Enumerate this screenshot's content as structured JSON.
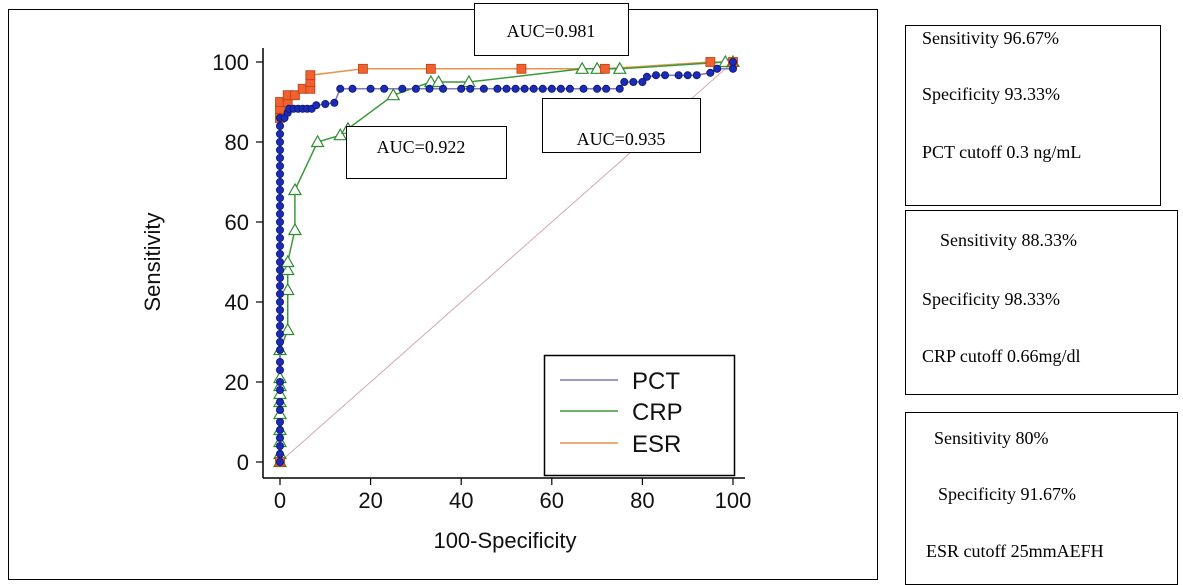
{
  "chart_data": {
    "type": "line",
    "xlabel": "100-Specificity",
    "ylabel": "Sensitivity",
    "xlim": [
      0,
      100
    ],
    "ylim": [
      0,
      100
    ],
    "xticks": [
      "0",
      "20",
      "40",
      "60",
      "80",
      "100"
    ],
    "yticks": [
      "0",
      "20",
      "40",
      "60",
      "80",
      "100"
    ],
    "diagonal": true,
    "legend_position": "bottom-right",
    "series": [
      {
        "name": "PCT",
        "line_color": "#7b77b8",
        "marker": "circle",
        "marker_color": "#1b2bb5",
        "marker_stroke": "#0a1470",
        "points": [
          [
            0,
            0
          ],
          [
            0,
            2
          ],
          [
            0,
            4
          ],
          [
            0,
            6
          ],
          [
            0,
            8
          ],
          [
            0,
            10
          ],
          [
            0,
            13
          ],
          [
            0,
            15
          ],
          [
            0,
            18
          ],
          [
            0,
            20
          ],
          [
            0,
            23
          ],
          [
            0,
            25
          ],
          [
            0,
            28
          ],
          [
            0,
            30
          ],
          [
            0,
            32
          ],
          [
            0,
            34
          ],
          [
            0,
            36
          ],
          [
            0,
            38
          ],
          [
            0,
            40
          ],
          [
            0,
            42
          ],
          [
            0,
            44
          ],
          [
            0,
            46
          ],
          [
            0,
            48
          ],
          [
            0,
            50
          ],
          [
            0,
            52
          ],
          [
            0,
            54
          ],
          [
            0,
            56
          ],
          [
            0,
            58
          ],
          [
            0,
            60
          ],
          [
            0,
            62
          ],
          [
            0,
            64
          ],
          [
            0,
            66
          ],
          [
            0,
            68
          ],
          [
            0,
            70
          ],
          [
            0,
            72
          ],
          [
            0,
            74
          ],
          [
            0,
            76
          ],
          [
            0,
            78
          ],
          [
            0,
            80
          ],
          [
            0,
            82
          ],
          [
            0,
            84
          ],
          [
            0,
            86
          ],
          [
            1,
            86
          ],
          [
            1.7,
            87.3
          ],
          [
            2,
            88.3
          ],
          [
            3,
            88.3
          ],
          [
            4,
            88.3
          ],
          [
            5,
            88.3
          ],
          [
            6,
            88.3
          ],
          [
            7,
            88.3
          ],
          [
            8,
            89.2
          ],
          [
            10,
            89.5
          ],
          [
            12,
            89.8
          ],
          [
            13.3,
            93.3
          ],
          [
            16,
            93.3
          ],
          [
            20,
            93.3
          ],
          [
            23,
            93.3
          ],
          [
            27,
            93.3
          ],
          [
            30,
            93.3
          ],
          [
            33,
            93.3
          ],
          [
            36,
            93.3
          ],
          [
            40,
            93.3
          ],
          [
            42,
            93.3
          ],
          [
            45,
            93.3
          ],
          [
            48,
            93.3
          ],
          [
            50,
            93.3
          ],
          [
            52,
            93.3
          ],
          [
            54,
            93.3
          ],
          [
            56,
            93.3
          ],
          [
            58,
            93.3
          ],
          [
            60,
            93.3
          ],
          [
            62,
            93.3
          ],
          [
            64,
            93.3
          ],
          [
            67,
            93.3
          ],
          [
            70,
            93.3
          ],
          [
            72,
            93.3
          ],
          [
            75,
            93.3
          ],
          [
            76,
            95
          ],
          [
            78,
            95
          ],
          [
            80,
            95
          ],
          [
            81,
            96.3
          ],
          [
            83,
            96.7
          ],
          [
            85,
            96.7
          ],
          [
            88,
            96.7
          ],
          [
            90,
            96.7
          ],
          [
            92,
            96.7
          ],
          [
            95,
            97.3
          ],
          [
            96.5,
            98.3
          ],
          [
            100,
            98.3
          ],
          [
            100,
            100
          ]
        ]
      },
      {
        "name": "CRP",
        "line_color": "#3a9a3a",
        "marker": "triangle",
        "marker_color": "#ffffff",
        "marker_stroke": "#2e8b2e",
        "points": [
          [
            0,
            0
          ],
          [
            0,
            2
          ],
          [
            0,
            5
          ],
          [
            0,
            8
          ],
          [
            0,
            12
          ],
          [
            0,
            15
          ],
          [
            0,
            17
          ],
          [
            0,
            19
          ],
          [
            0,
            21
          ],
          [
            0,
            28
          ],
          [
            1.7,
            33
          ],
          [
            1.7,
            43
          ],
          [
            1.7,
            48
          ],
          [
            1.7,
            50
          ],
          [
            3.3,
            58
          ],
          [
            3.3,
            68
          ],
          [
            8.3,
            80
          ],
          [
            13.3,
            81.7
          ],
          [
            15,
            83.3
          ],
          [
            25,
            91.7
          ],
          [
            33.3,
            95
          ],
          [
            35,
            95
          ],
          [
            41.7,
            95
          ],
          [
            66.7,
            98.3
          ],
          [
            70,
            98.3
          ],
          [
            75,
            98.3
          ],
          [
            98.3,
            100
          ],
          [
            100,
            100
          ]
        ]
      },
      {
        "name": "ESR",
        "line_color": "#e8934a",
        "marker": "square",
        "marker_color": "#f06030",
        "marker_stroke": "#b84010",
        "points": [
          [
            0,
            0
          ],
          [
            0,
            86
          ],
          [
            0,
            88.3
          ],
          [
            0,
            90
          ],
          [
            1.7,
            90
          ],
          [
            1.7,
            91.7
          ],
          [
            3.3,
            91.7
          ],
          [
            5,
            93.3
          ],
          [
            6.7,
            93.3
          ],
          [
            6.7,
            95
          ],
          [
            6.7,
            96.7
          ],
          [
            18.3,
            98.3
          ],
          [
            33.3,
            98.3
          ],
          [
            53.3,
            98.3
          ],
          [
            71.7,
            98.3
          ],
          [
            95,
            100
          ],
          [
            100,
            100
          ]
        ]
      }
    ],
    "annotations": [
      "AUC=0.981",
      "AUC=0.922",
      "AUC=0.935"
    ]
  },
  "side_panels": [
    {
      "sensitivity": "Sensitivity 96.67%",
      "specificity": "Specificity 93.33%",
      "cutoff": "PCT cutoff 0.3 ng/mL"
    },
    {
      "sensitivity": "Sensitivity 88.33%",
      "specificity": "Specificity 98.33%",
      "cutoff": "CRP cutoff 0.66mg/dl"
    },
    {
      "sensitivity": "Sensitivity 80%",
      "specificity": "Specificity 91.67%",
      "cutoff": "ESR cutoff 25mmAEFH"
    }
  ]
}
